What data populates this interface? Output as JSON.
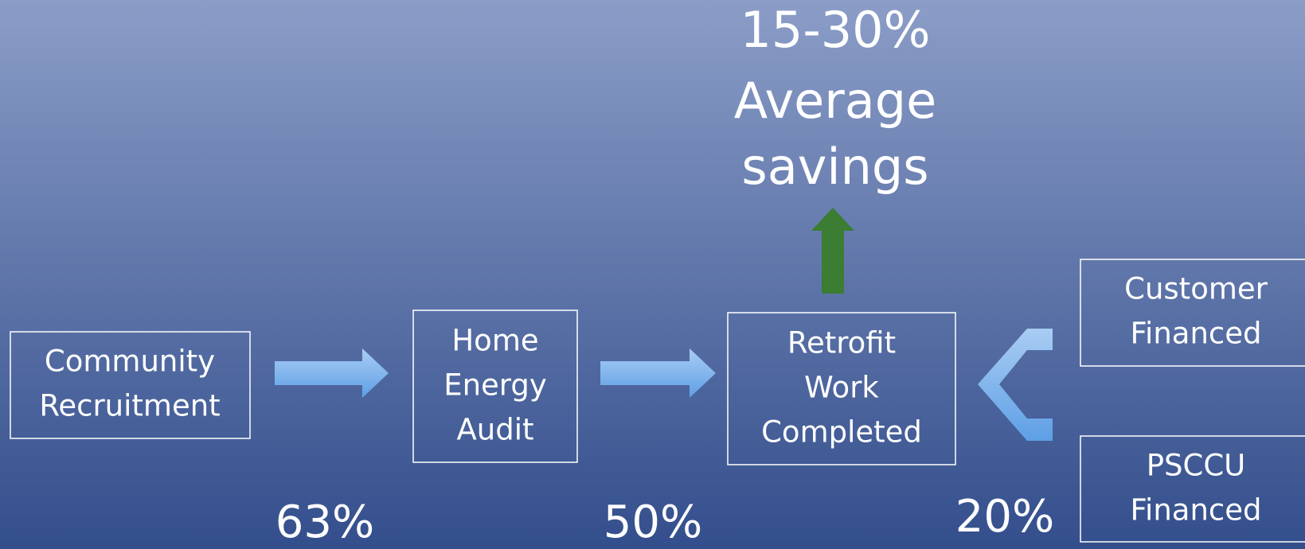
{
  "nodes": [
    {
      "label": [
        "Community",
        "Recruitment"
      ]
    },
    {
      "label": [
        "Home",
        "Energy",
        "Audit"
      ]
    },
    {
      "label": [
        "Retrofit",
        "Work",
        "Completed"
      ]
    },
    {
      "label": [
        "Customer",
        "Financed"
      ]
    },
    {
      "label": [
        "PSCCU",
        "Financed"
      ]
    }
  ],
  "rates": [
    "63%",
    "50%",
    "20%"
  ],
  "savings": [
    "15-30%",
    "Average",
    "savings"
  ]
}
